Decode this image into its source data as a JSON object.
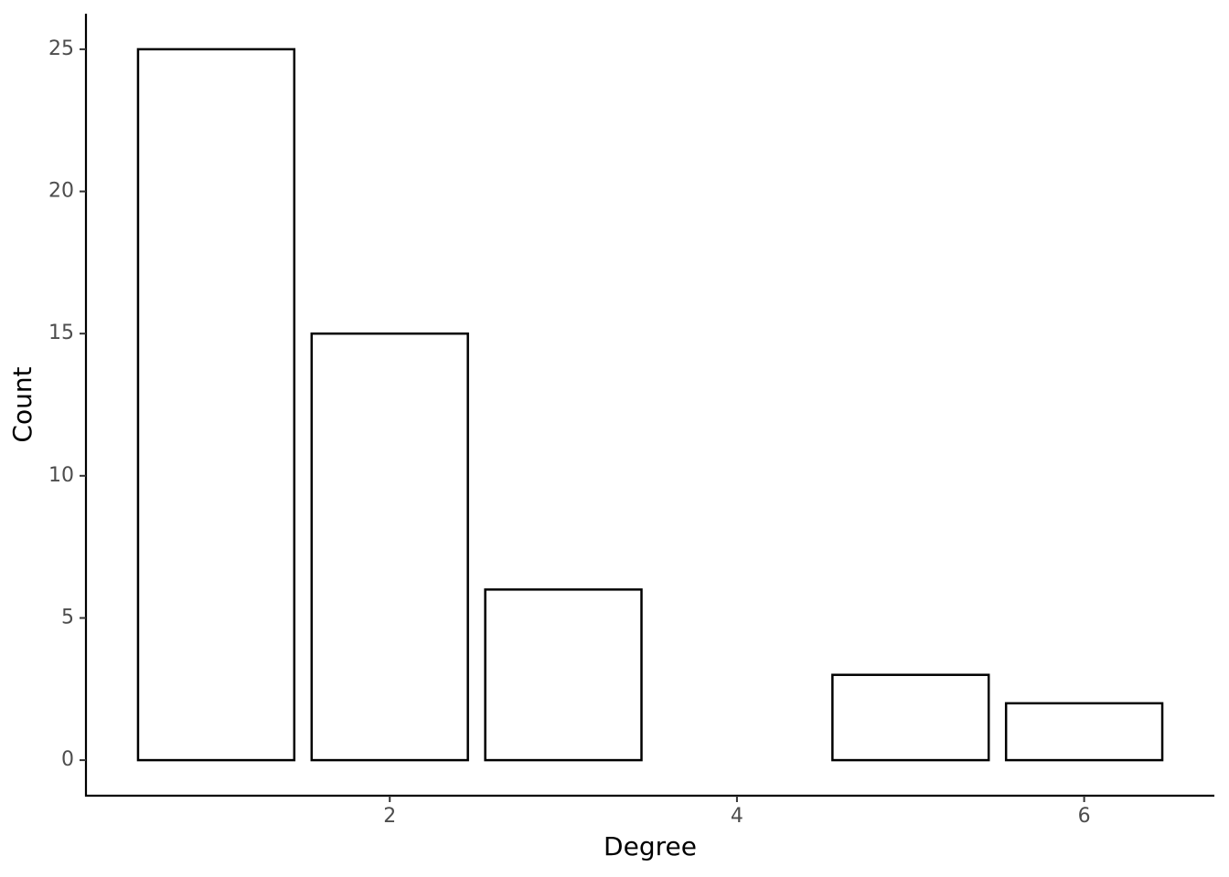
{
  "chart_data": {
    "type": "bar",
    "x": [
      1,
      2,
      3,
      5,
      6
    ],
    "values": [
      25,
      15,
      6,
      3,
      2
    ],
    "color": "#ffffff",
    "edgecolor": "#000000",
    "xlabel": "Degree",
    "ylabel": "Count",
    "xlim": [
      0.25,
      6.75
    ],
    "xticks": [
      2,
      4,
      6
    ],
    "ylim": [
      -1.25,
      26.25
    ],
    "yticks": [
      0,
      5,
      10,
      15,
      20,
      25
    ],
    "grid": false
  }
}
